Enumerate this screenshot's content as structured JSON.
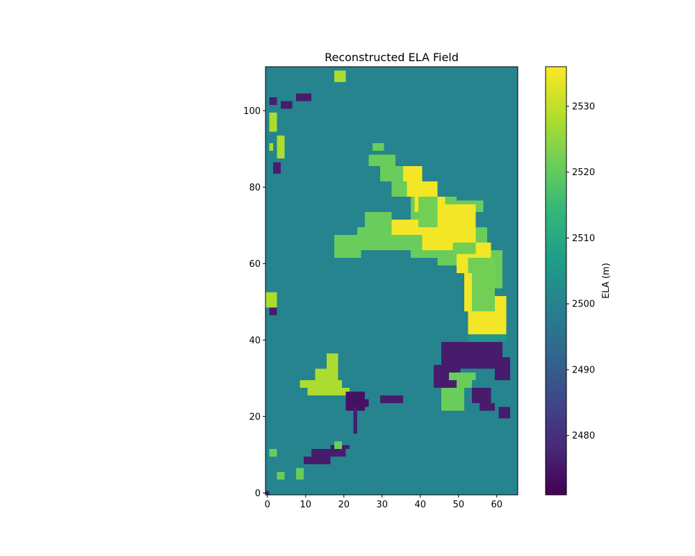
{
  "chart_data": {
    "type": "heatmap",
    "title": "Reconstructed ELA Field",
    "xlabel": "",
    "ylabel": "",
    "grid": false,
    "origin": "lower",
    "xlim": [
      -0.5,
      65.5
    ],
    "ylim": [
      -0.5,
      111.5
    ],
    "x_ticks": [
      0,
      10,
      20,
      30,
      40,
      50,
      60
    ],
    "y_ticks": [
      0,
      20,
      40,
      60,
      80,
      100
    ],
    "colormap": "viridis",
    "viridis_stops": [
      "#440154",
      "#482878",
      "#3e4989",
      "#31688e",
      "#26828e",
      "#1f9e89",
      "#35b779",
      "#6ece58",
      "#b5de2b",
      "#fde725"
    ],
    "background_value": 2500.5,
    "colorbar": {
      "label": "ELA (m)",
      "vmin": 2471,
      "vmax": 2536,
      "ticks": [
        2480,
        2490,
        2500,
        2510,
        2520,
        2530
      ]
    },
    "regions": [
      {
        "name": "upper arm outer",
        "value": 2521,
        "cells": [
          [
            28,
            90,
            31,
            92
          ],
          [
            27,
            86,
            34,
            89
          ],
          [
            30,
            82,
            38,
            86
          ],
          [
            33,
            78,
            42,
            82
          ],
          [
            38,
            70,
            50,
            78
          ],
          [
            42,
            74,
            56,
            77
          ],
          [
            50,
            74,
            55,
            76
          ],
          [
            55,
            74,
            57,
            77
          ],
          [
            26,
            70,
            33,
            74
          ],
          [
            24,
            66,
            34,
            70
          ],
          [
            18,
            64,
            38,
            68
          ],
          [
            18,
            62,
            25,
            64
          ],
          [
            38,
            62,
            48,
            68
          ],
          [
            45,
            60,
            58,
            70
          ],
          [
            55,
            54,
            62,
            64
          ]
        ]
      },
      {
        "name": "upper arm core",
        "value": 2535,
        "cells": [
          [
            36,
            82,
            41,
            86
          ],
          [
            37,
            78,
            45,
            82
          ],
          [
            39,
            74,
            47,
            78
          ],
          [
            33,
            68,
            44,
            72
          ],
          [
            41,
            64,
            55,
            76
          ],
          [
            50,
            58,
            59,
            66
          ],
          [
            52,
            48,
            60,
            58
          ],
          [
            53,
            42,
            63,
            52
          ]
        ]
      },
      {
        "name": "arm light streak",
        "value": 2522,
        "cells": [
          [
            40,
            70,
            45,
            78
          ],
          [
            49,
            63,
            55,
            66
          ],
          [
            53,
            58,
            60,
            62
          ],
          [
            54,
            48,
            60,
            58
          ]
        ]
      },
      {
        "name": "junction gradient",
        "value": 2505,
        "cells": [
          [
            53,
            40,
            63,
            42
          ]
        ]
      },
      {
        "name": "south depression",
        "value": 2476,
        "cells": [
          [
            46,
            33,
            62,
            40
          ],
          [
            44,
            28,
            51,
            34
          ],
          [
            48,
            38,
            53,
            40
          ],
          [
            60,
            30,
            64,
            36
          ],
          [
            54,
            24,
            59,
            28
          ],
          [
            56,
            22,
            60,
            24
          ],
          [
            61,
            20,
            64,
            23
          ]
        ]
      },
      {
        "name": "green lobe",
        "value": 2521,
        "cells": [
          [
            48,
            30,
            55,
            32
          ],
          [
            46,
            22,
            52,
            28
          ],
          [
            50,
            28,
            54,
            30
          ]
        ]
      },
      {
        "name": "west lobe",
        "value": 2528,
        "cells": [
          [
            9,
            28,
            12,
            30
          ],
          [
            11,
            26,
            20,
            30
          ],
          [
            13,
            30,
            19,
            33
          ],
          [
            16,
            33,
            19,
            37
          ],
          [
            19,
            26,
            22,
            28
          ]
        ]
      },
      {
        "name": "west depression",
        "value": 2474,
        "cells": [
          [
            21,
            22,
            26,
            27
          ],
          [
            24,
            23,
            27,
            25
          ]
        ]
      },
      {
        "name": "south rim",
        "value": 2476,
        "cells": [
          [
            10,
            8,
            17,
            10
          ],
          [
            12,
            10,
            21,
            12
          ],
          [
            17,
            12,
            22,
            13
          ],
          [
            23,
            16,
            24,
            23
          ],
          [
            30,
            24,
            36,
            26
          ]
        ]
      },
      {
        "name": "south rim speckle",
        "value": 2521,
        "cells": [
          [
            18,
            12,
            20,
            14
          ],
          [
            3,
            4,
            5,
            6
          ],
          [
            8,
            4,
            10,
            7
          ],
          [
            1,
            10,
            3,
            12
          ]
        ]
      },
      {
        "name": "edge speckle a",
        "value": 2476,
        "cells": [
          [
            4,
            101,
            7,
            103
          ],
          [
            1,
            102,
            3,
            104
          ],
          [
            8,
            103,
            12,
            105
          ],
          [
            2,
            84,
            4,
            87
          ],
          [
            1,
            47,
            3,
            49
          ],
          [
            0,
            0,
            1,
            1
          ]
        ]
      },
      {
        "name": "edge speckle b",
        "value": 2528,
        "cells": [
          [
            1,
            95,
            3,
            100
          ],
          [
            3,
            88,
            5,
            94
          ],
          [
            0,
            49,
            3,
            53
          ],
          [
            1,
            90,
            2,
            92
          ],
          [
            18,
            108,
            21,
            111
          ]
        ]
      }
    ]
  }
}
